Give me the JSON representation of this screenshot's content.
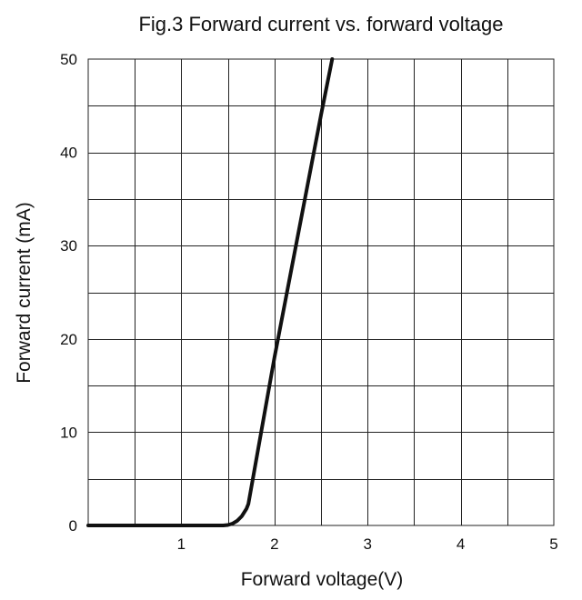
{
  "chart_data": {
    "type": "line",
    "title": "Fig.3 Forward current vs. forward voltage",
    "xlabel": "Forward voltage(V)",
    "ylabel": "Forward current (mA)",
    "xlim": [
      0,
      5
    ],
    "ylim": [
      0,
      50
    ],
    "x_ticks": [
      1,
      2,
      3,
      4,
      5
    ],
    "y_ticks": [
      0,
      10,
      20,
      30,
      40,
      50
    ],
    "x_grid_step": 0.5,
    "y_grid_step": 5,
    "grid": true,
    "legend": "none",
    "series": [
      {
        "color": "#111111",
        "x": [
          0,
          1.0,
          1.45,
          1.5,
          1.55,
          1.6,
          1.65,
          1.7,
          1.72,
          2.0,
          2.5,
          2.62
        ],
        "y": [
          0,
          0,
          0,
          0.05,
          0.2,
          0.5,
          1.0,
          1.8,
          2.3,
          18.0,
          44.0,
          50.0
        ]
      }
    ]
  }
}
